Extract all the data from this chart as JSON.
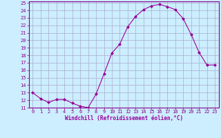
{
  "x": [
    0,
    1,
    2,
    3,
    4,
    5,
    6,
    7,
    8,
    9,
    10,
    11,
    12,
    13,
    14,
    15,
    16,
    17,
    18,
    19,
    20,
    21,
    22,
    23
  ],
  "y": [
    13,
    12.2,
    11.7,
    12.1,
    12.1,
    11.6,
    11.2,
    11.0,
    12.8,
    15.5,
    18.3,
    19.5,
    21.8,
    23.2,
    24.1,
    24.6,
    24.8,
    24.5,
    24.1,
    22.9,
    20.8,
    18.4,
    16.7,
    16.7
  ],
  "line_color": "#990099",
  "marker": "D",
  "marker_size": 2,
  "bg_color": "#cceeff",
  "grid_color": "#aaaacc",
  "xlabel": "Windchill (Refroidissement éolien,°C)",
  "ylabel": "",
  "ylim": [
    11,
    25
  ],
  "xlim": [
    -0.5,
    23.5
  ],
  "yticks": [
    11,
    12,
    13,
    14,
    15,
    16,
    17,
    18,
    19,
    20,
    21,
    22,
    23,
    24,
    25
  ],
  "xticks": [
    0,
    1,
    2,
    3,
    4,
    5,
    6,
    7,
    8,
    9,
    10,
    11,
    12,
    13,
    14,
    15,
    16,
    17,
    18,
    19,
    20,
    21,
    22,
    23
  ],
  "tick_color": "#990099",
  "label_color": "#990099",
  "axis_color": "#880088",
  "tick_fontsize": 5,
  "xlabel_fontsize": 5.5
}
